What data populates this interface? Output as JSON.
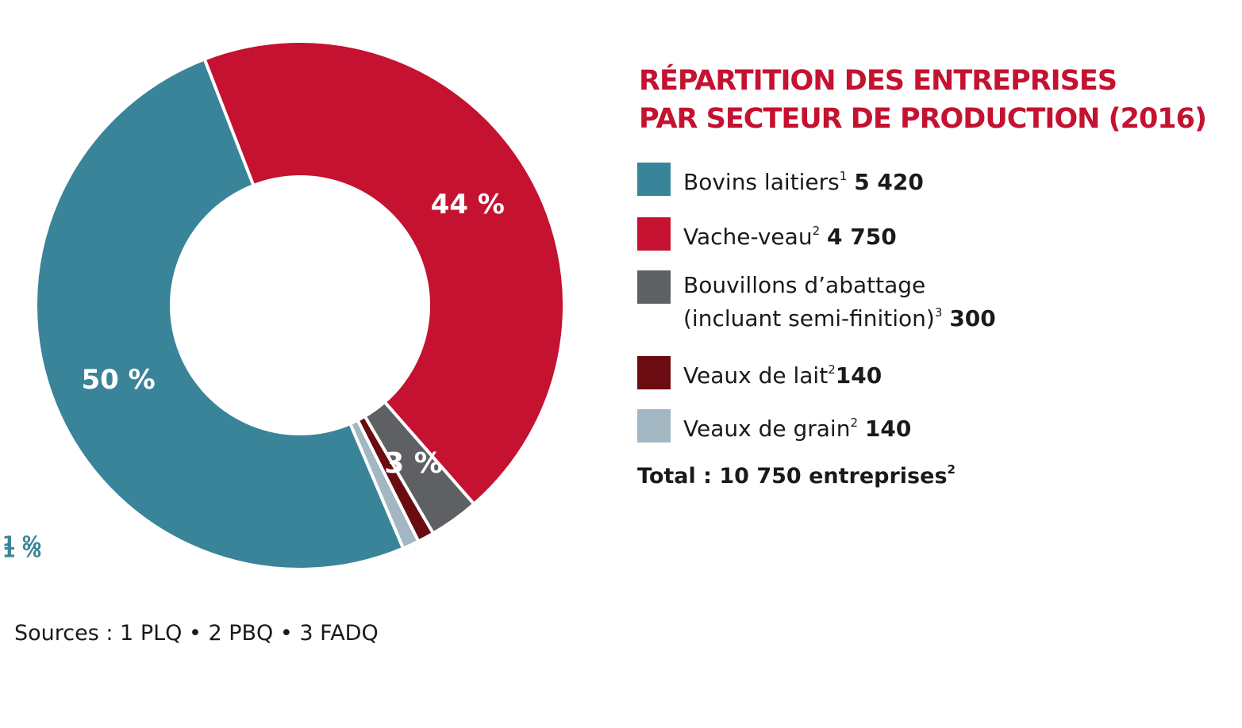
{
  "chart_data": {
    "type": "pie",
    "title_lines": [
      "RÉPARTITION DES ENTREPRISES",
      "PAR SECTEUR DE PRODUCTION (2016)"
    ],
    "title_color": "#c41230",
    "slices": [
      {
        "name": "Bovins laitiers",
        "sup": "1",
        "count": "5 420",
        "value": 50,
        "label": "50 %",
        "color": "#3a8499"
      },
      {
        "name": "Vache-veau",
        "sup": "2",
        "count": "4 750",
        "value": 44,
        "label": "44 %",
        "color": "#c41230"
      },
      {
        "name": "Bouvillons d’abattage",
        "name_line2": "(incluant semi-finition)",
        "sup": "3",
        "count": "300",
        "value": 3,
        "label": "3 %",
        "color": "#5e6063"
      },
      {
        "name": "Veaux de lait",
        "sup": "2",
        "count": "140",
        "value": 1,
        "label": "1 %",
        "color": "#6b0c12"
      },
      {
        "name": "Veaux de grain",
        "sup": "2",
        "count": "140",
        "value": 1,
        "label": "1 %",
        "color": "#a3b7c3"
      }
    ],
    "small_label_color": "#3a8499",
    "total": {
      "text": "Total : 10 750 entreprises",
      "sup": "2"
    },
    "sources": "Sources : 1 PLQ • 2 PBQ • 3 FADQ"
  }
}
